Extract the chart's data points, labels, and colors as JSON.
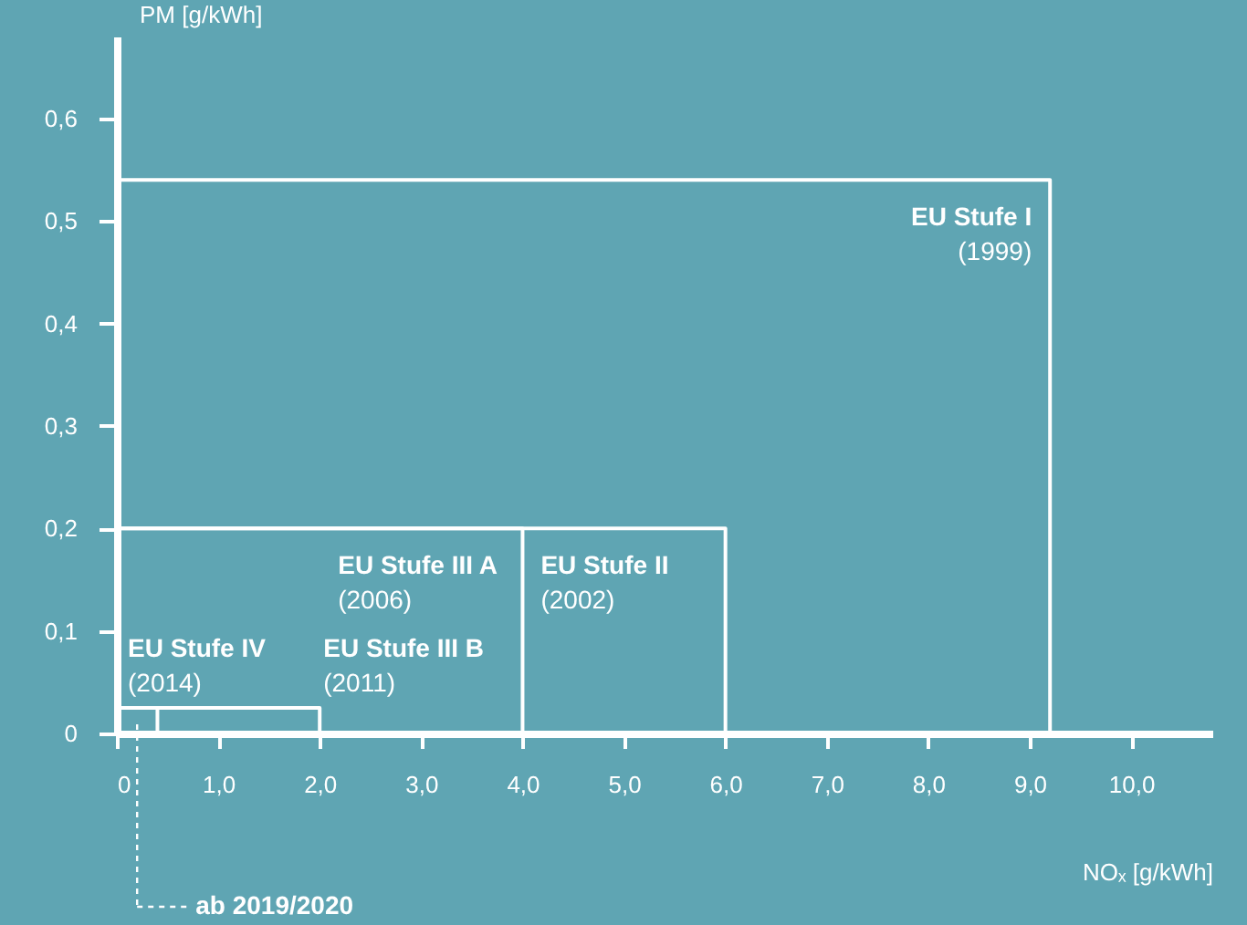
{
  "chart_data": {
    "type": "line",
    "xlabel": "NOₓ [g/kWh]",
    "ylabel": "PM [g/kWh]",
    "xlim": [
      0,
      10.8
    ],
    "ylim": [
      0,
      0.68
    ],
    "xticks": [
      0,
      {
        "value": 1,
        "label": "1,0"
      },
      {
        "value": 2,
        "label": "2,0"
      },
      {
        "value": 3,
        "label": "3,0"
      },
      {
        "value": 4,
        "label": "4,0"
      },
      {
        "value": 5,
        "label": "5,0"
      },
      {
        "value": 6,
        "label": "6,0"
      },
      {
        "value": 7,
        "label": "7,0"
      },
      {
        "value": 8,
        "label": "8,0"
      },
      {
        "value": 9,
        "label": "9,0"
      },
      {
        "value": 10,
        "label": "10,0"
      }
    ],
    "yticks": [
      0,
      {
        "value": 0.1,
        "label": "0,1"
      },
      {
        "value": 0.2,
        "label": "0,2"
      },
      {
        "value": 0.3,
        "label": "0,3"
      },
      {
        "value": 0.4,
        "label": "0,4"
      },
      {
        "value": 0.5,
        "label": "0,5"
      },
      {
        "value": 0.6,
        "label": "0,6"
      }
    ],
    "grid": false,
    "series": [
      {
        "name": "EU Stufe I",
        "color": "#ffffff",
        "x": [
          0,
          9.2,
          9.2
        ],
        "values": [
          0.54,
          0.54,
          0
        ]
      },
      {
        "name": "EU Stufe II",
        "color": "#ffffff",
        "x": [
          0,
          6.0,
          6.0
        ],
        "values": [
          0.2,
          0.2,
          0
        ]
      },
      {
        "name": "EU Stufe III A",
        "color": "#ffffff",
        "x": [
          0,
          4.0,
          4.0
        ],
        "values": [
          0.2,
          0.2,
          0
        ]
      },
      {
        "name": "EU Stufe III B",
        "color": "#ffffff",
        "x": [
          0,
          2.0,
          2.0
        ],
        "values": [
          0.025,
          0.025,
          0
        ]
      },
      {
        "name": "EU Stufe IV",
        "color": "#ffffff",
        "x": [
          0,
          0.4,
          0.4
        ],
        "values": [
          0.025,
          0.025,
          0
        ]
      }
    ],
    "annotations": [
      "(1999)",
      "(2002)",
      "(2006)",
      "(2011)",
      "(2014)",
      "ab 2019/2020"
    ]
  }
}
